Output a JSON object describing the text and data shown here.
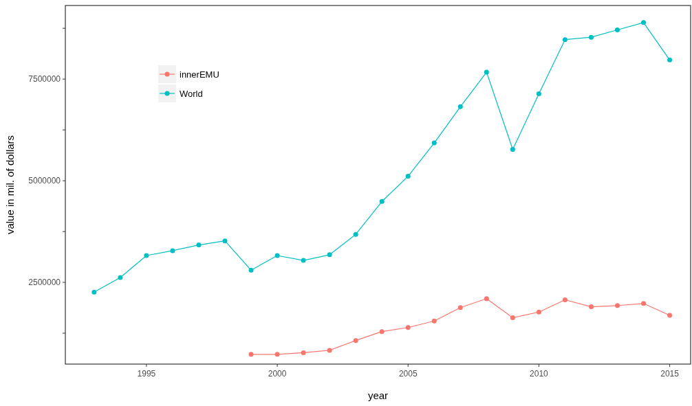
{
  "chart_data": {
    "type": "line",
    "xlabel": "year",
    "ylabel": "value in mil. of dollars",
    "x": [
      1993,
      1994,
      1995,
      1996,
      1997,
      1998,
      1999,
      2000,
      2001,
      2002,
      2003,
      2004,
      2005,
      2006,
      2007,
      2008,
      2009,
      2010,
      2011,
      2012,
      2013,
      2014,
      2015
    ],
    "series": [
      {
        "name": "innerEMU",
        "color": "#f8766d",
        "values": [
          null,
          null,
          null,
          null,
          null,
          null,
          730000,
          730000,
          770000,
          830000,
          1070000,
          1290000,
          1390000,
          1550000,
          1880000,
          2100000,
          1630000,
          1770000,
          2070000,
          1900000,
          1930000,
          1980000,
          1690000
        ]
      },
      {
        "name": "World",
        "color": "#00bfc4",
        "values": [
          2260000,
          2620000,
          3160000,
          3280000,
          3420000,
          3520000,
          2800000,
          3160000,
          3040000,
          3180000,
          3680000,
          4490000,
          5110000,
          5930000,
          6820000,
          7670000,
          5770000,
          7140000,
          8470000,
          8530000,
          8710000,
          8890000,
          7970000
        ]
      }
    ],
    "xlim": [
      1991.9,
      2015.8
    ],
    "xticks": [
      1995,
      2000,
      2005,
      2010,
      2015
    ],
    "ylim": [
      490000,
      9310000
    ],
    "yticks": [
      {
        "value": 1250000,
        "label": null
      },
      2500000,
      {
        "value": 3750000,
        "label": null
      },
      5000000,
      {
        "value": 6250000,
        "label": null
      },
      7500000,
      {
        "value": 8750000,
        "label": null
      }
    ],
    "grid": false,
    "legend": "top left",
    "marker": "circle",
    "line_style": "solid"
  }
}
